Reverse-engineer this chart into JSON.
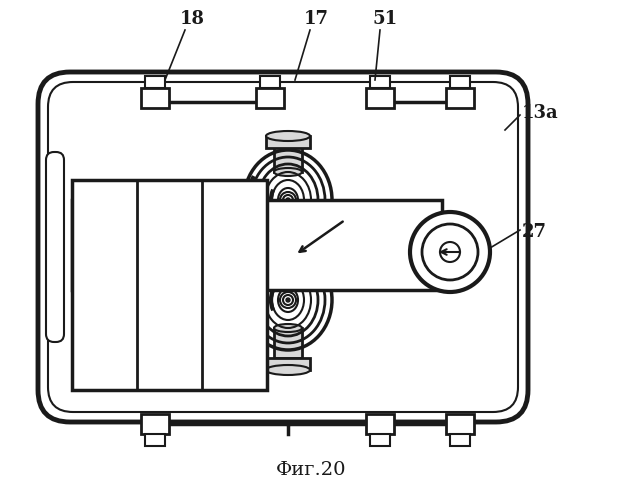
{
  "title": "Фиг.20",
  "title_font": "DejaVu Serif",
  "title_fontsize": 14,
  "bg_color": "#ffffff",
  "line_color": "#1a1a1a",
  "label_18": "18",
  "label_17": "17",
  "label_51": "51",
  "label_13a": "13a",
  "label_27": "27",
  "figw": 6.22,
  "figh": 5.0,
  "dpi": 100
}
